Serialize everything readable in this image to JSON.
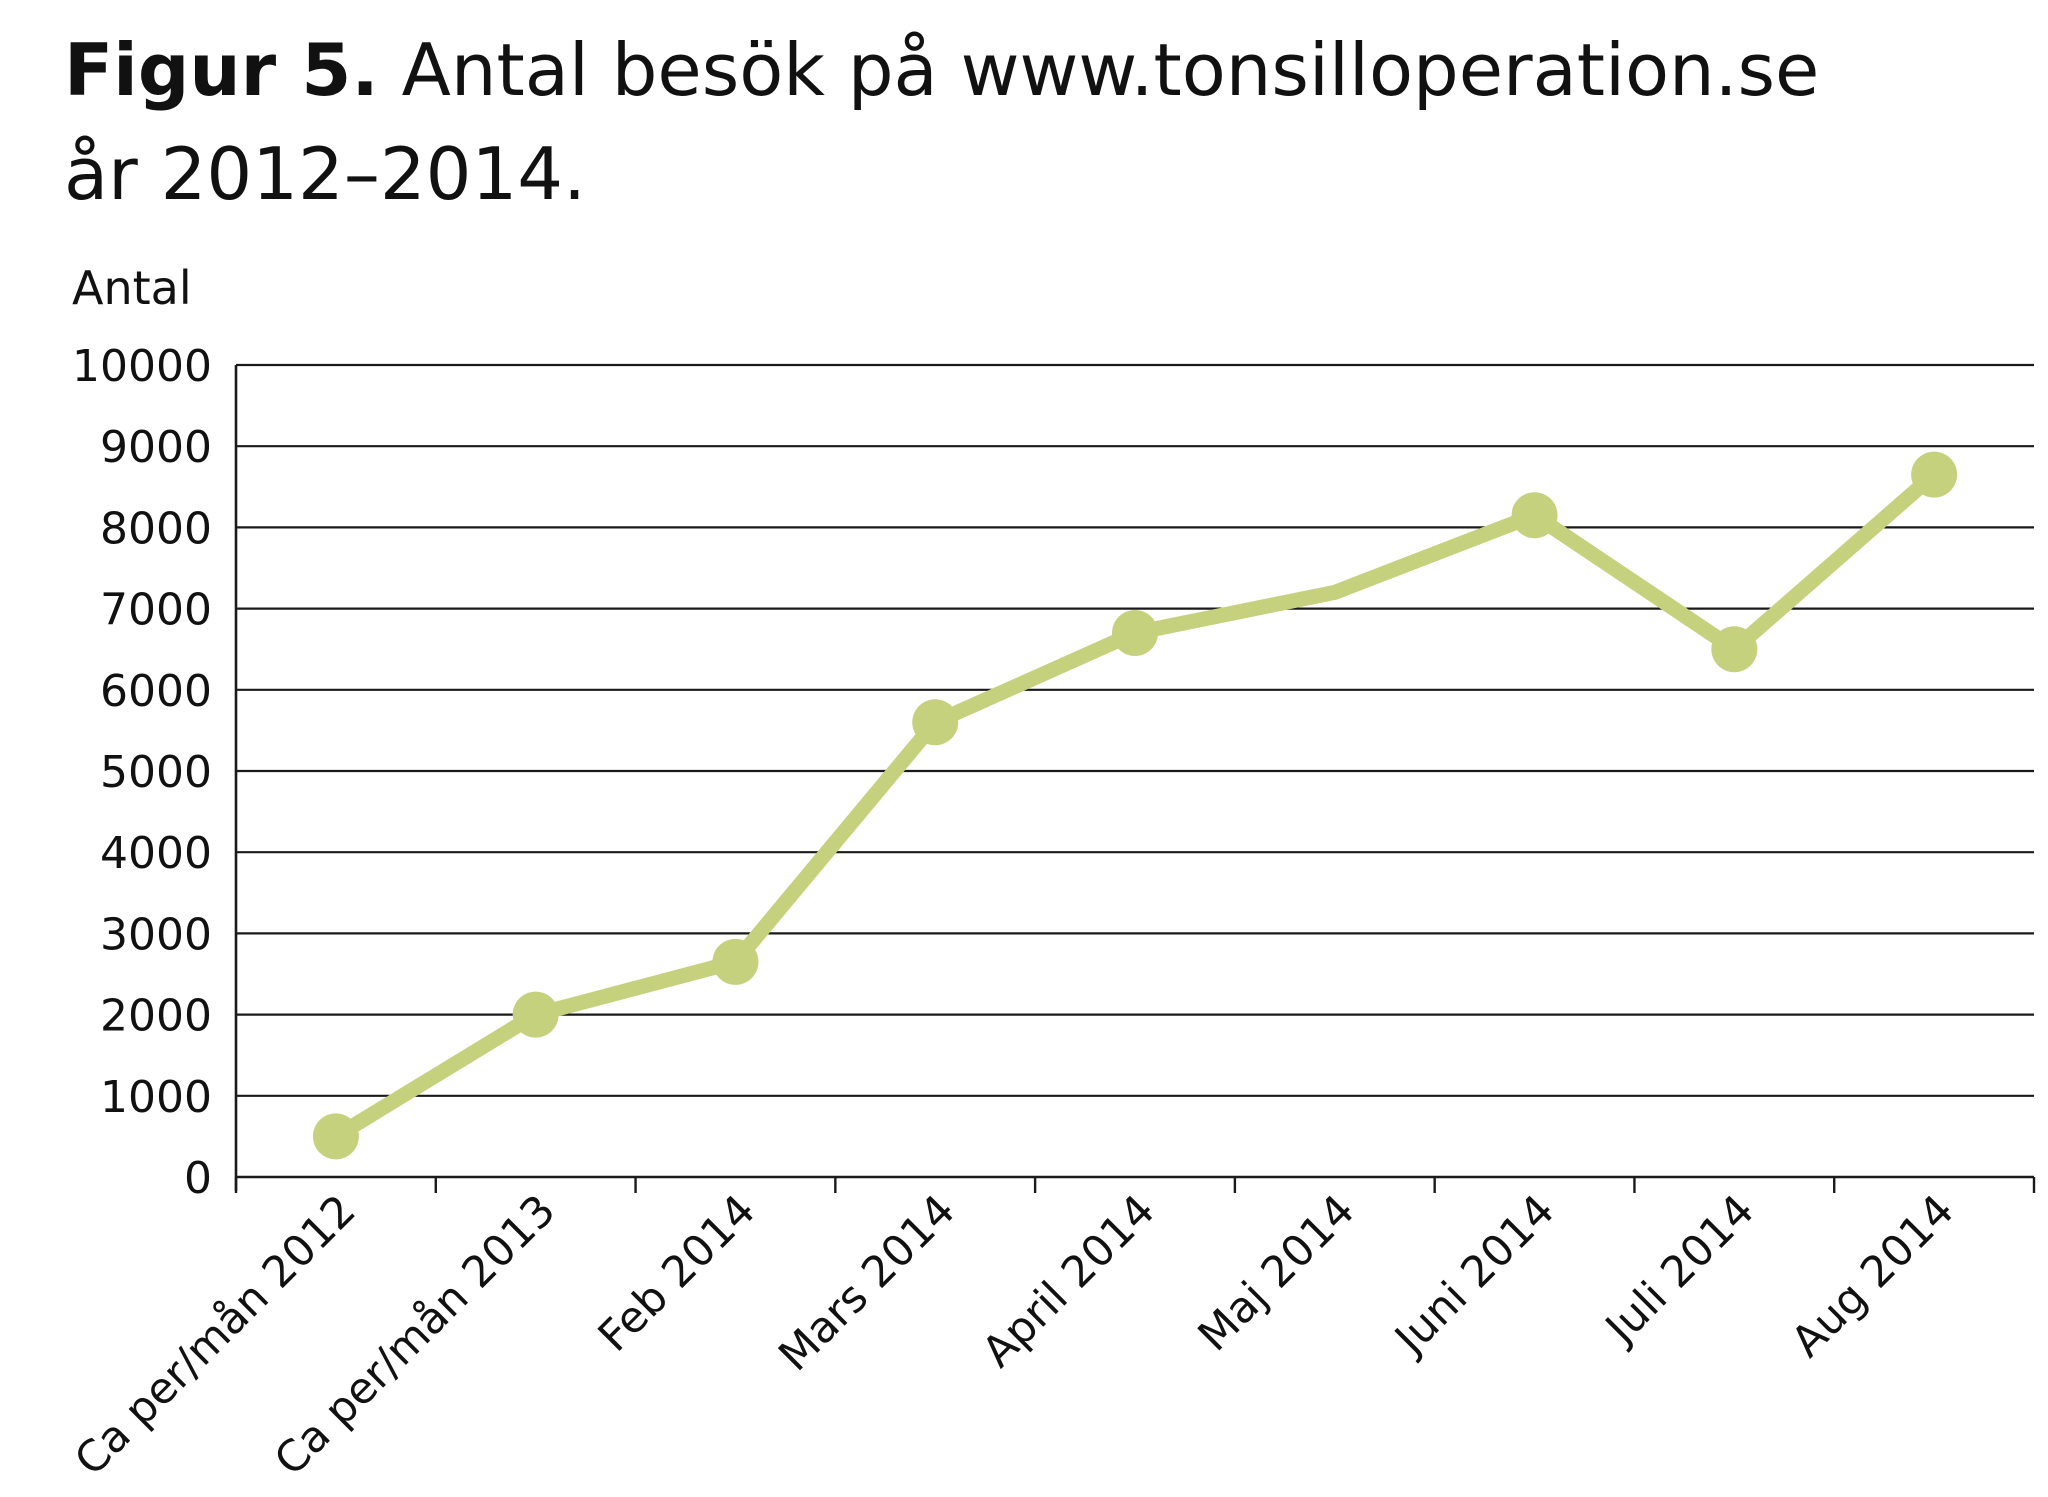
{
  "figure": {
    "number_label": "Figur 5.",
    "title_line1": "Antal besök på www.tonsilloperation.se",
    "title_line2": "år 2012–2014."
  },
  "colors": {
    "line": "#c6d17e",
    "grid": "#1a1a1a",
    "text": "#111111"
  },
  "chart_data": {
    "type": "line",
    "title": "Antal besök på www.tonsilloperation.se år 2012–2014.",
    "xlabel": "",
    "ylabel": "Antal",
    "ylim": [
      0,
      10000
    ],
    "yticks": [
      0,
      1000,
      2000,
      3000,
      4000,
      5000,
      6000,
      7000,
      8000,
      9000,
      10000
    ],
    "grid": true,
    "legend": "none",
    "categories": [
      "Ca per/mån 2012",
      "Ca per/mån 2013",
      "Feb 2014",
      "Mars 2014",
      "April 2014",
      "Maj 2014",
      "Juni 2014",
      "Juli 2014",
      "Aug 2014"
    ],
    "series": [
      {
        "values": [
          500,
          2000,
          2650,
          5600,
          6700,
          7200,
          8150,
          6500,
          8650
        ],
        "markers": [
          true,
          true,
          true,
          true,
          true,
          false,
          true,
          true,
          true
        ]
      }
    ]
  }
}
